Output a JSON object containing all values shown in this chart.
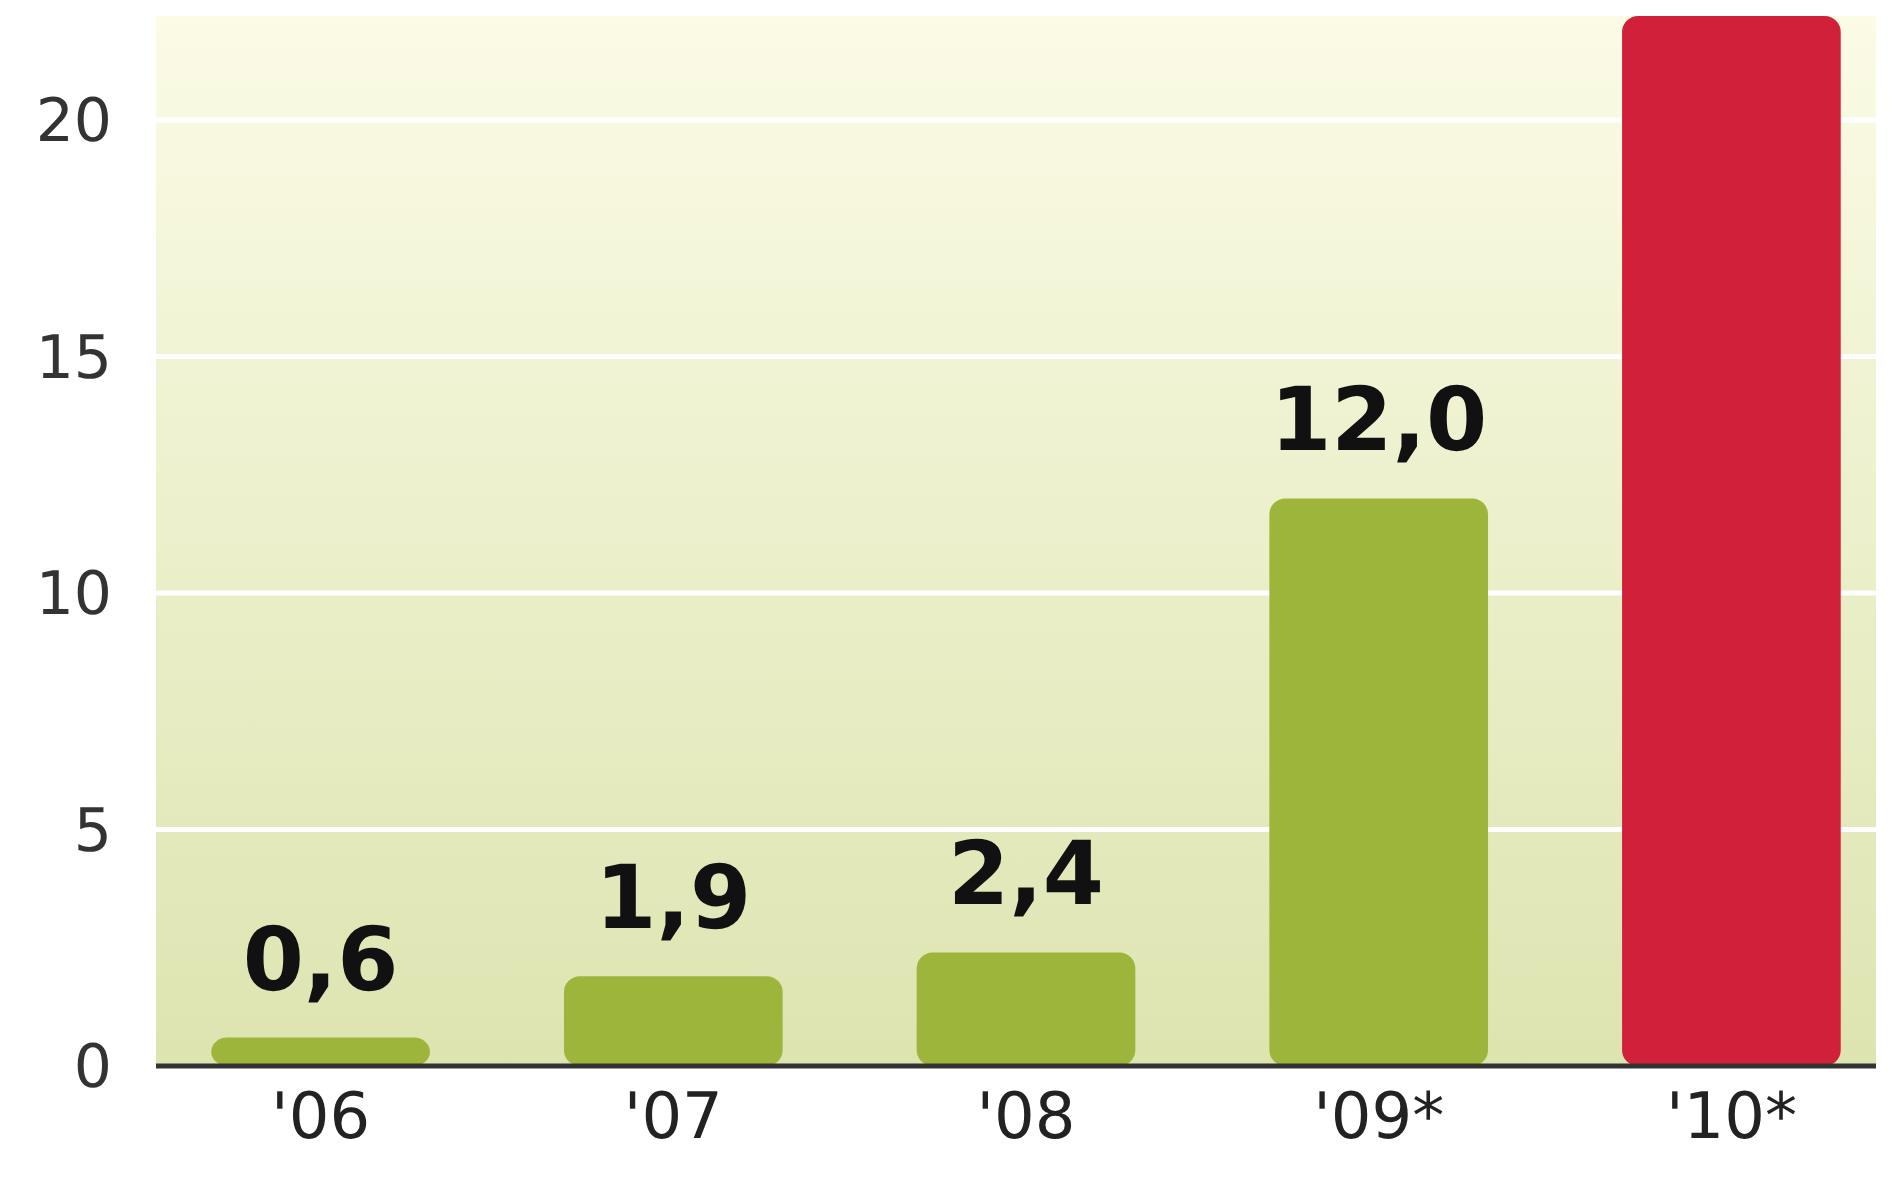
{
  "chart_data": {
    "type": "bar",
    "categories": [
      "'06",
      "'07",
      "'08",
      "'09*",
      "'10*"
    ],
    "values": [
      0.6,
      1.9,
      2.4,
      12.0,
      22.2
    ],
    "colors": [
      "#9db53b",
      "#9db53b",
      "#9db53b",
      "#9db53b",
      "#d0203a"
    ],
    "value_labels": [
      "0,6",
      "1,9",
      "2,4",
      "12,0",
      null
    ],
    "ylim": [
      0,
      22.2
    ],
    "yticks": [
      0,
      5,
      10,
      15,
      20
    ],
    "grid": "y"
  }
}
